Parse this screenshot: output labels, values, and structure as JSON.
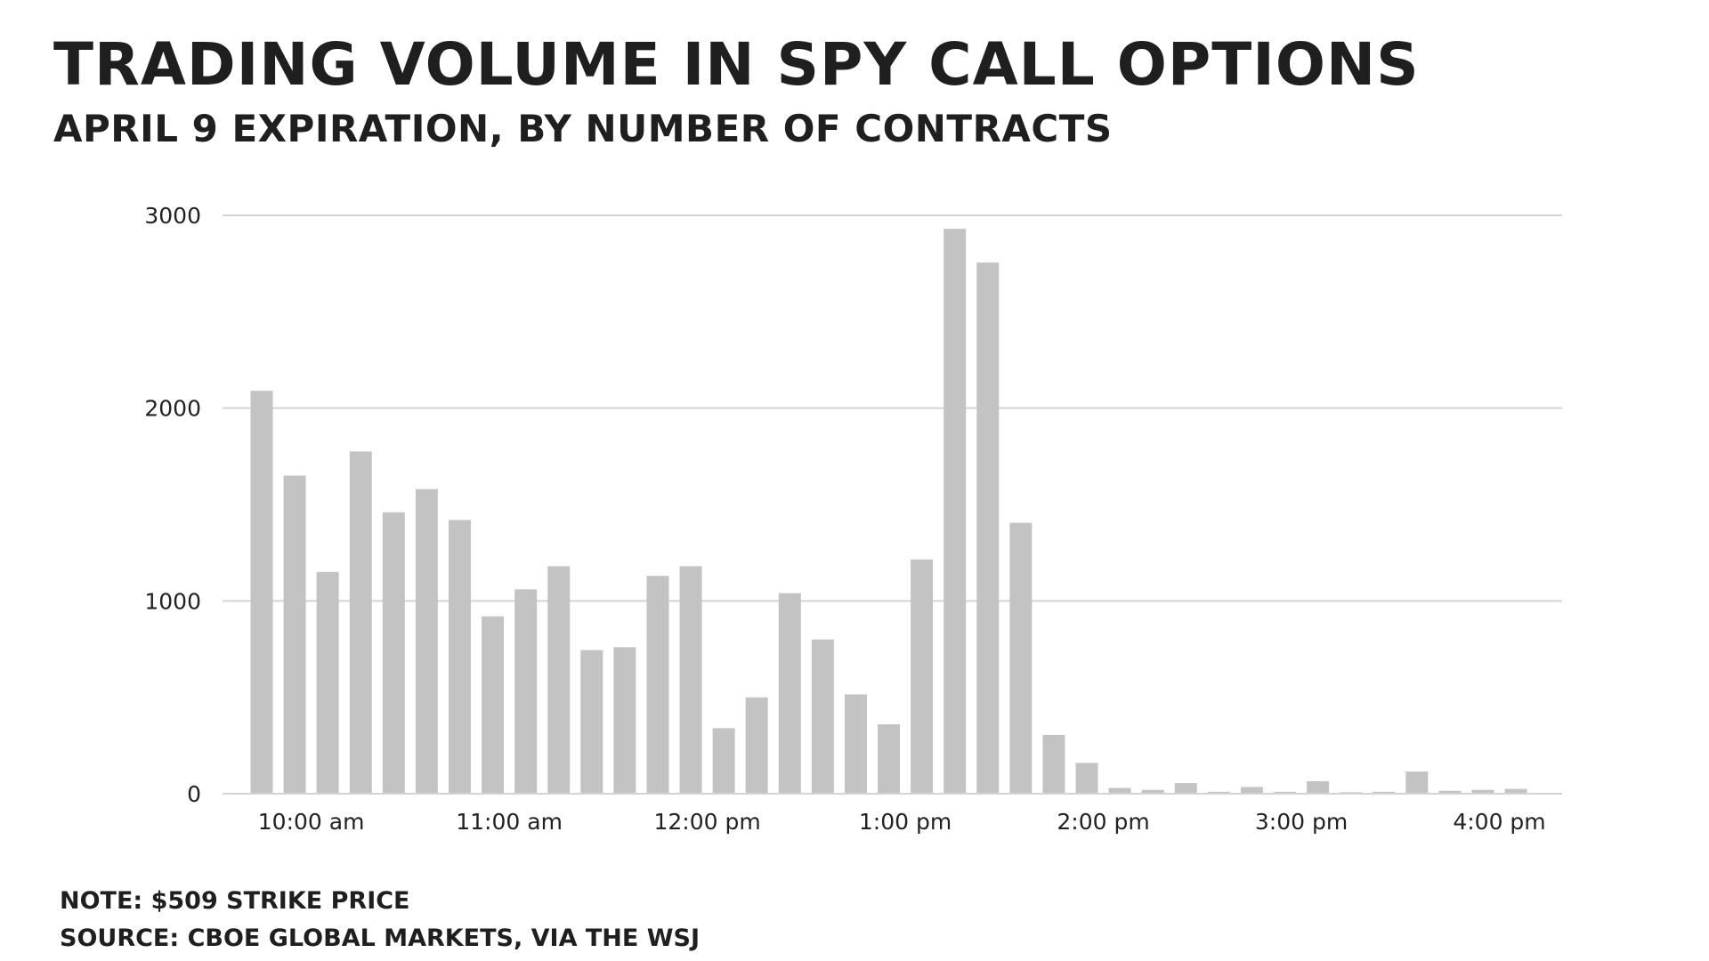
{
  "header": {
    "title": "Trading volume in SPY call options",
    "subtitle": "April 9 expiration, by number of contracts"
  },
  "footer": {
    "note": "Note: $509 strike price",
    "source": "Source: CBOE Global Markets, via the WSJ"
  },
  "colors": {
    "bar": "#c4c3c3",
    "grid": "#d4d4d4",
    "text": "#1f1f1f"
  },
  "chart_data": {
    "type": "bar",
    "title": "Trading volume in SPY call options",
    "subtitle": "April 9 expiration, by number of contracts",
    "xlabel": "",
    "ylabel": "",
    "ylim": [
      0,
      3000
    ],
    "yticks": [
      0,
      1000,
      2000,
      3000
    ],
    "ytick_labels": [
      "0",
      "1000",
      "2000",
      "3000"
    ],
    "xticks": [
      "10:00 am",
      "11:00 am",
      "12:00 pm",
      "1:00 pm",
      "2:00 pm",
      "3:00 pm",
      "4:00 pm"
    ],
    "grid": true,
    "legend": "none",
    "interval_minutes": 10,
    "categories": [
      "9:40",
      "9:50",
      "10:00",
      "10:10",
      "10:20",
      "10:30",
      "10:40",
      "10:50",
      "11:00",
      "11:10",
      "11:20",
      "11:30",
      "11:40",
      "11:50",
      "12:00",
      "12:10",
      "12:20",
      "12:30",
      "12:40",
      "12:50",
      "1:00",
      "1:10",
      "1:20",
      "1:30",
      "1:40",
      "1:50",
      "2:00",
      "2:10",
      "2:20",
      "2:30",
      "2:40",
      "2:50",
      "3:00",
      "3:10",
      "3:20",
      "3:30",
      "3:40",
      "3:50",
      "4:00",
      "4:10"
    ],
    "values": [
      2090,
      1650,
      1150,
      1775,
      1460,
      1580,
      1420,
      920,
      1060,
      1180,
      745,
      760,
      1130,
      1180,
      340,
      500,
      1040,
      800,
      515,
      360,
      1215,
      2930,
      2755,
      1405,
      305,
      160,
      30,
      20,
      55,
      10,
      35,
      10,
      65,
      8,
      10,
      115,
      15,
      20,
      25,
      0
    ]
  }
}
